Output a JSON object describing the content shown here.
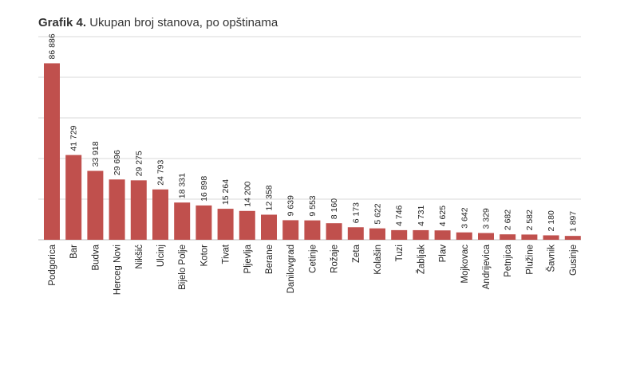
{
  "title": {
    "prefix": "Grafik 4.",
    "text": "Ukupan broj stanova, po opštinama"
  },
  "chart_data": {
    "type": "bar",
    "title": "Grafik 4. Ukupan broj stanova, po opštinama",
    "xlabel": "",
    "ylabel": "",
    "ylim": [
      0,
      100000
    ],
    "grid": true,
    "legend": "none",
    "bar_color": "#c0504d",
    "categories": [
      "Podgorica",
      "Bar",
      "Budva",
      "Herceg Novi",
      "Nikšić",
      "Ulcinj",
      "Bijelo Polje",
      "Kotor",
      "Tivat",
      "Pljevlja",
      "Berane",
      "Danilovgrad",
      "Cetinje",
      "Rožaje",
      "Zeta",
      "Kolašin",
      "Tuzi",
      "Žabljak",
      "Plav",
      "Mojkovac",
      "Andrijevica",
      "Petnjica",
      "Plužine",
      "Šavnik",
      "Gusinje"
    ],
    "values": [
      86886,
      41729,
      33918,
      29696,
      29275,
      24793,
      18331,
      16898,
      15264,
      14200,
      12358,
      9639,
      9553,
      8160,
      6173,
      5622,
      4746,
      4731,
      4625,
      3642,
      3329,
      2682,
      2582,
      2180,
      1897
    ],
    "value_labels": [
      "86 886",
      "41 729",
      "33 918",
      "29 696",
      "29 275",
      "24 793",
      "18 331",
      "16 898",
      "15 264",
      "14 200",
      "12 358",
      "9 639",
      "9 553",
      "8 160",
      "6 173",
      "5 622",
      "4 746",
      "4 731",
      "4 625",
      "3 642",
      "3 329",
      "2 682",
      "2 582",
      "2 180",
      "1 897"
    ]
  }
}
